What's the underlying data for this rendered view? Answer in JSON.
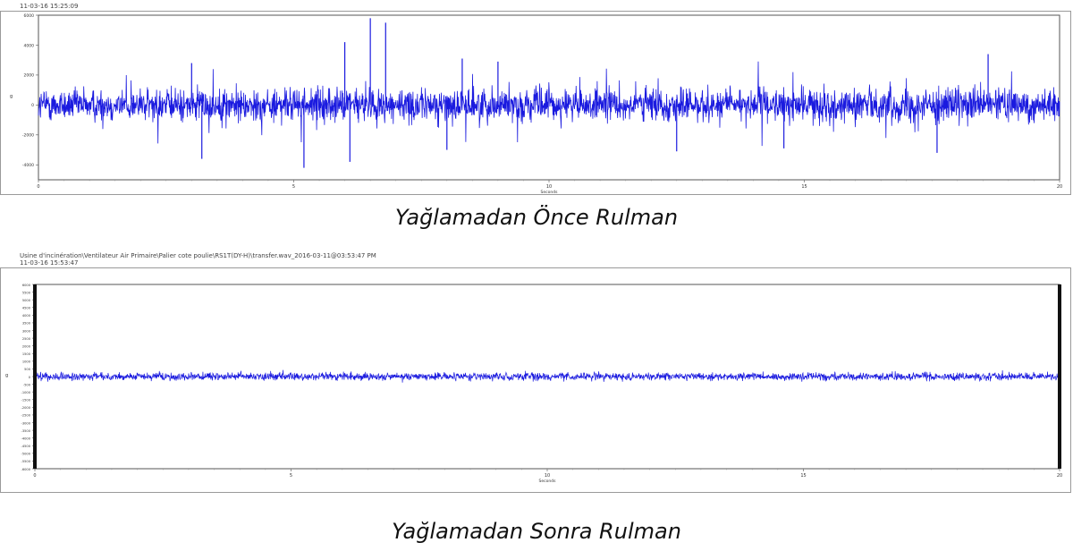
{
  "chart_data": [
    {
      "type": "line",
      "title": "",
      "header_line1": "",
      "header_line2": "11-03-16 15:25:09",
      "caption": "Yağlamadan Önce Rulman",
      "xlabel": "Seconds",
      "ylabel": "g",
      "xlim": [
        0,
        20
      ],
      "ylim": [
        -5000,
        6000
      ],
      "x_ticks": [
        "0",
        "5",
        "10",
        "15",
        "20"
      ],
      "y_ticks": [
        "6000",
        "4000",
        "2000",
        "0",
        "-2000",
        "-4000"
      ],
      "series": [
        {
          "color": "#1a1adf",
          "description_stats": {
            "rms_band": [
              -1000,
              1000
            ],
            "typical_peaks": [
              2200,
              -2000
            ],
            "max": 6000,
            "min": -4800
          }
        }
      ],
      "spikes": [
        [
          3.0,
          2800
        ],
        [
          3.2,
          -3600
        ],
        [
          5.2,
          -4200
        ],
        [
          6.0,
          4200
        ],
        [
          6.1,
          -3800
        ],
        [
          6.5,
          5800
        ],
        [
          6.8,
          5500
        ],
        [
          8.0,
          -3000
        ],
        [
          8.3,
          3100
        ],
        [
          9.0,
          2900
        ],
        [
          12.5,
          -3100
        ],
        [
          14.6,
          -2900
        ],
        [
          17.6,
          -3200
        ],
        [
          18.6,
          3400
        ]
      ]
    },
    {
      "type": "line",
      "title": "",
      "header_line1": "Usine d'incinération\\Ventilateur Air Primaire\\Palier cote poulie\\RS1T(DY-H)\\transfer.wav_2016-03-11@03:53:47 PM",
      "header_line2": "11-03-16 15:53:47",
      "caption": "Yağlamadan Sonra Rulman",
      "xlabel": "Seconds",
      "ylabel": "g",
      "xlim": [
        0,
        20
      ],
      "ylim": [
        -6000,
        6000
      ],
      "x_ticks": [
        "0",
        "5",
        "10",
        "15",
        "20"
      ],
      "y_ticks": [
        "6000",
        "5500",
        "5000",
        "4500",
        "4000",
        "3500",
        "3000",
        "2500",
        "2000",
        "1500",
        "1000",
        "500",
        "0",
        "-500",
        "-1000",
        "-1500",
        "-2000",
        "-2500",
        "-3000",
        "-3500",
        "-4000",
        "-4500",
        "-5000",
        "-5500",
        "-6000"
      ],
      "series": [
        {
          "color": "#1a1adf",
          "description_stats": {
            "rms_band": [
              -250,
              250
            ],
            "max": 450,
            "min": -450
          }
        }
      ],
      "spikes": []
    }
  ]
}
